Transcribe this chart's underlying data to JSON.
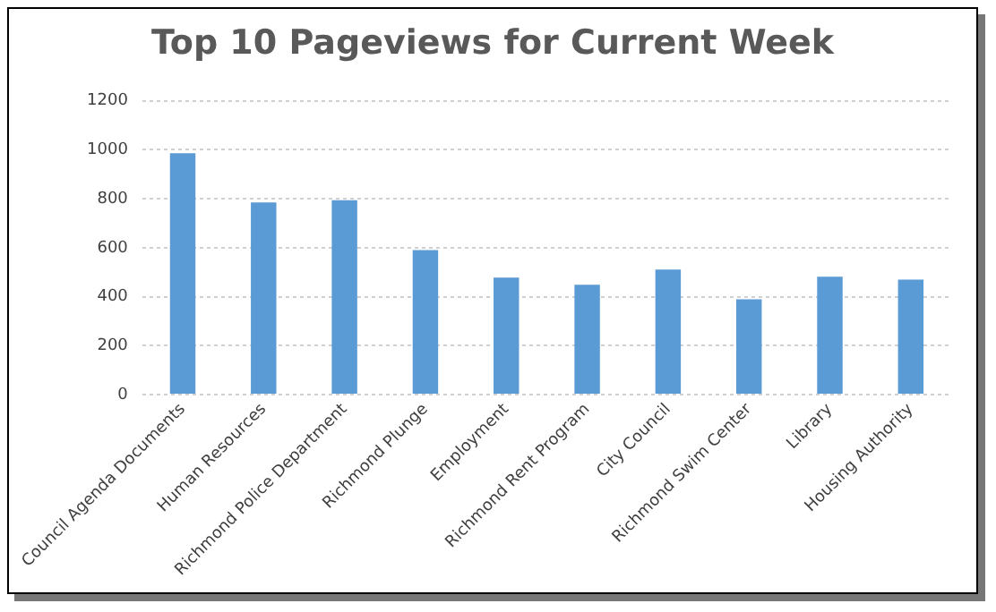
{
  "chart_data": {
    "type": "bar",
    "title": "Top 10 Pageviews for Current Week",
    "categories": [
      "Council Agenda Documents",
      "Human Resources",
      "Richmond Police Department",
      "Richmond Plunge",
      "Employment",
      "Richmond Rent Program",
      "City Council",
      "Richmond Swim Center",
      "Library",
      "Housing Authority"
    ],
    "values": [
      986,
      785,
      794,
      590,
      478,
      449,
      511,
      389,
      482,
      470
    ],
    "color": "#5b9bd5",
    "ylim": [
      0,
      1200
    ],
    "yticks": [
      0,
      200,
      400,
      600,
      800,
      1000,
      1200
    ],
    "grid": "y",
    "legend": false
  }
}
